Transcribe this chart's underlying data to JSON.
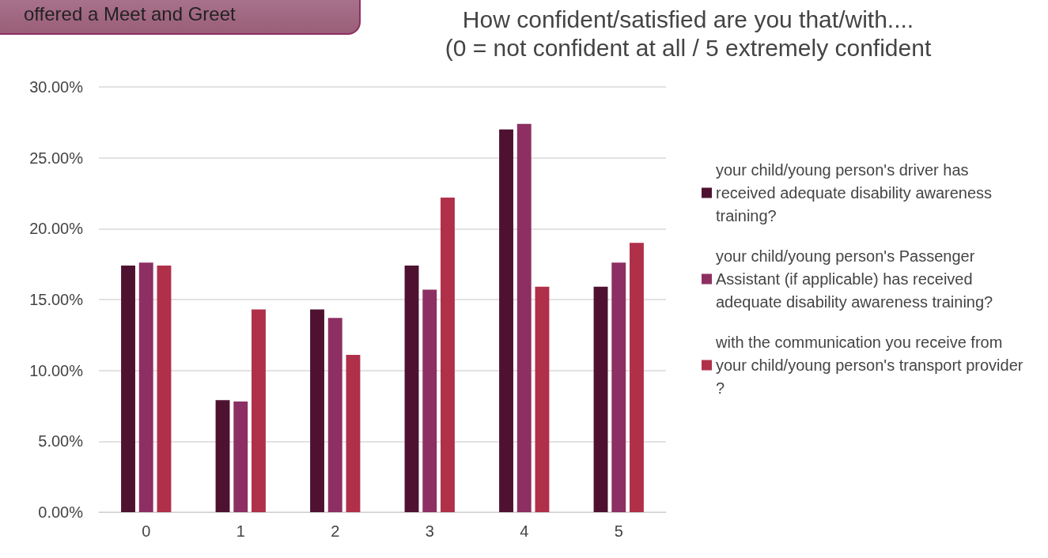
{
  "chart_data": {
    "type": "bar",
    "title": "How confident/satisfied are you that/with....",
    "subtitle": "(0 = not confident at all / 5 extremely confident",
    "annotations": [
      "offered a Meet and Greet"
    ],
    "categories": [
      "0",
      "1",
      "2",
      "3",
      "4",
      "5"
    ],
    "series": [
      {
        "name": "your child/young person's driver has received adequate disability awareness training?",
        "color": "#4e1230",
        "values": [
          17.4,
          7.9,
          14.3,
          17.4,
          27.0,
          15.9
        ]
      },
      {
        "name": "your child/young person's Passenger Assistant (if applicable) has received adequate disability awareness training?",
        "color": "#8d2f62",
        "values": [
          17.6,
          7.8,
          13.7,
          15.7,
          27.4,
          17.6
        ]
      },
      {
        "name": "with the communication you receive from your child/young person's transport provider?",
        "color": "#b03049",
        "values": [
          17.4,
          14.3,
          11.1,
          22.2,
          15.9,
          19.0
        ]
      }
    ],
    "ylim": [
      0,
      30
    ],
    "yticks": [
      {
        "value": 0,
        "label": "0.00%"
      },
      {
        "value": 5,
        "label": "5.00%"
      },
      {
        "value": 10,
        "label": "10.00%"
      },
      {
        "value": 15,
        "label": "15.00%"
      },
      {
        "value": 20,
        "label": "20.00%"
      },
      {
        "value": 25,
        "label": "25.00%"
      },
      {
        "value": 30,
        "label": "30.00%"
      }
    ],
    "grid": "y",
    "legend": "right"
  }
}
